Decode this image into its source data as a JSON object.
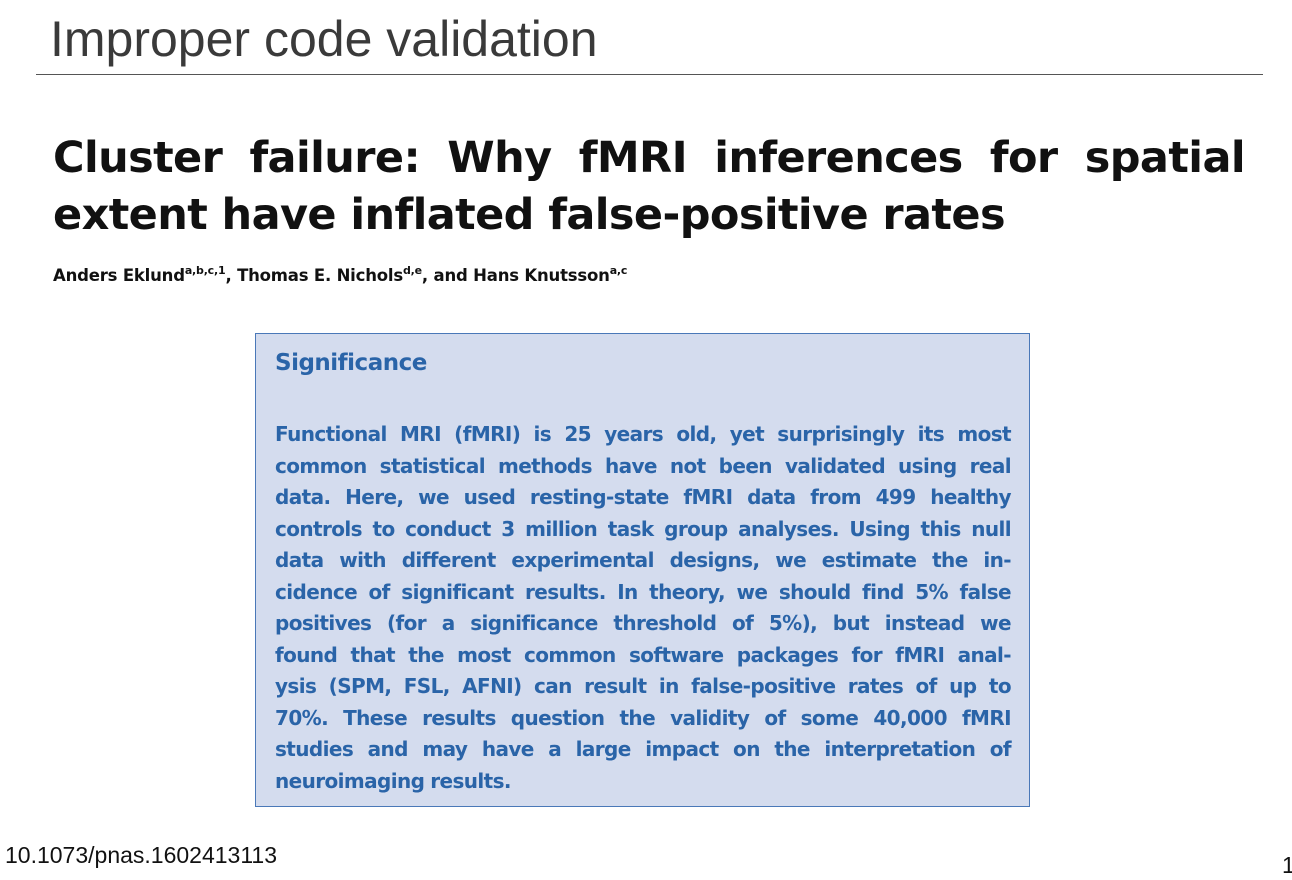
{
  "slide": {
    "title": "Improper code validation",
    "doi": "10.1073/pnas.1602413113",
    "page_number": "1"
  },
  "paper": {
    "title": "Cluster failure: Why fMRI inferences for spatial extent have inflated false-positive rates",
    "authors": [
      {
        "name": "Anders Eklund",
        "affiliations": "a,b,c,1",
        "separator": ", "
      },
      {
        "name": "Thomas E. Nichols",
        "affiliations": "d,e",
        "separator": ", and "
      },
      {
        "name": "Hans Knutsson",
        "affiliations": "a,c",
        "separator": ""
      }
    ]
  },
  "significance": {
    "heading": "Significance",
    "lines": [
      "Functional MRI (fMRI) is 25 years old, yet surprisingly its most",
      "common statistical methods have not been validated using real",
      "data. Here, we used resting-state fMRI data from 499 healthy",
      "controls to conduct 3 million task group analyses. Using this null",
      "data with different experimental designs, we estimate the in-",
      "cidence of significant results. In theory, we should find 5% false",
      "positives (for a significance threshold of 5%), but instead we",
      "found that the most common software packages for fMRI anal-",
      "ysis (SPM, FSL, AFNI) can result in false-positive rates of up to",
      "70%. These results question the validity of some 40,000 fMRI",
      "studies and may have a large impact on the interpretation of",
      "neuroimaging results."
    ]
  },
  "colors": {
    "significance_text": "#2a64a8",
    "significance_background": "#d4dcee",
    "significance_border": "#4a78b8"
  }
}
